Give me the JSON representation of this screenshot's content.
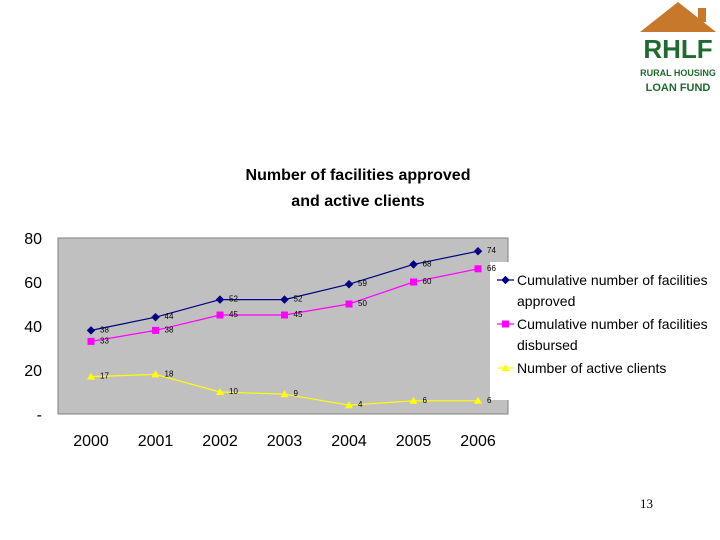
{
  "logo": {
    "abbr": "RHLF",
    "line1": "RURAL HOUSING",
    "line2": "LOAN FUND",
    "colors": {
      "roof": "#c8782a",
      "green": "#1f6b2f"
    }
  },
  "page_number": "13",
  "chart_data": {
    "type": "line",
    "title_line1": "Number of facilities approved",
    "title_line2": "and active clients",
    "categories": [
      "2000",
      "2001",
      "2002",
      "2003",
      "2004",
      "2005",
      "2006"
    ],
    "ylim": [
      0,
      80
    ],
    "yticks": [
      {
        "value": 80,
        "label": "80"
      },
      {
        "value": 60,
        "label": "60"
      },
      {
        "value": 40,
        "label": "40"
      },
      {
        "value": 20,
        "label": "20"
      },
      {
        "value": 0,
        "label": "-"
      }
    ],
    "grid": false,
    "plot_background": "#c0c0c0",
    "legend_position": "right",
    "series": [
      {
        "name_line1": "Cumulative number of facilities",
        "name_line2": "approved",
        "marker": "diamond",
        "color": "#000080",
        "values": [
          38,
          44,
          52,
          52,
          59,
          68,
          74
        ]
      },
      {
        "name_line1": "Cumulative number of facilities",
        "name_line2": "disbursed",
        "marker": "square",
        "color": "#ff00ff",
        "values": [
          33,
          38,
          45,
          45,
          50,
          60,
          66
        ]
      },
      {
        "name_line1": "Number of active clients",
        "name_line2": "",
        "marker": "triangle",
        "color": "#ffff00",
        "values": [
          17,
          18,
          10,
          9,
          4,
          6,
          6
        ]
      }
    ]
  }
}
